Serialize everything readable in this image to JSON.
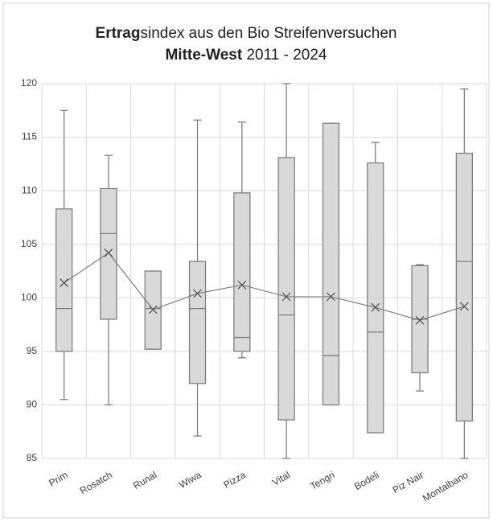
{
  "chart_data": {
    "type": "box",
    "title_lines": [
      [
        {
          "text": "Ertrag",
          "bold": true
        },
        {
          "text": "sindex aus den Bio Streifenversuchen",
          "bold": false
        }
      ],
      [
        {
          "text": "Mitte-West",
          "bold": true
        },
        {
          "text": " 2011 - 2024",
          "bold": false
        }
      ]
    ],
    "categories": [
      "Prim",
      "Rosatch",
      "Runal",
      "Wiwa",
      "Pizza",
      "Vital",
      "Tengri",
      "Bodeli",
      "Piz Nair",
      "Montalbano"
    ],
    "min": [
      90.5,
      90,
      95.2,
      87.1,
      94.4,
      85,
      90,
      87.4,
      91.3,
      85
    ],
    "q1": [
      95,
      98,
      95.2,
      92,
      95,
      88.6,
      90,
      87.4,
      93,
      88.5
    ],
    "median": [
      99,
      106,
      99,
      99,
      96.3,
      98.4,
      94.6,
      96.8,
      98,
      103.4
    ],
    "q3": [
      108.3,
      110.2,
      102.5,
      103.4,
      109.8,
      113.1,
      116.3,
      112.6,
      103,
      113.5
    ],
    "max": [
      117.5,
      113.3,
      102.5,
      116.6,
      116.4,
      120,
      116.3,
      114.5,
      103.1,
      119.5
    ],
    "mean": [
      101.4,
      104.2,
      98.9,
      100.4,
      101.2,
      100.1,
      100.1,
      99.1,
      97.9,
      99.2
    ],
    "color": "#d9d9d9",
    "edge_color": "#7f7f7f",
    "mean_line": true,
    "ylim": [
      85,
      120
    ],
    "yticks": [
      85,
      90,
      95,
      100,
      105,
      110,
      115,
      120
    ],
    "grid": true
  }
}
